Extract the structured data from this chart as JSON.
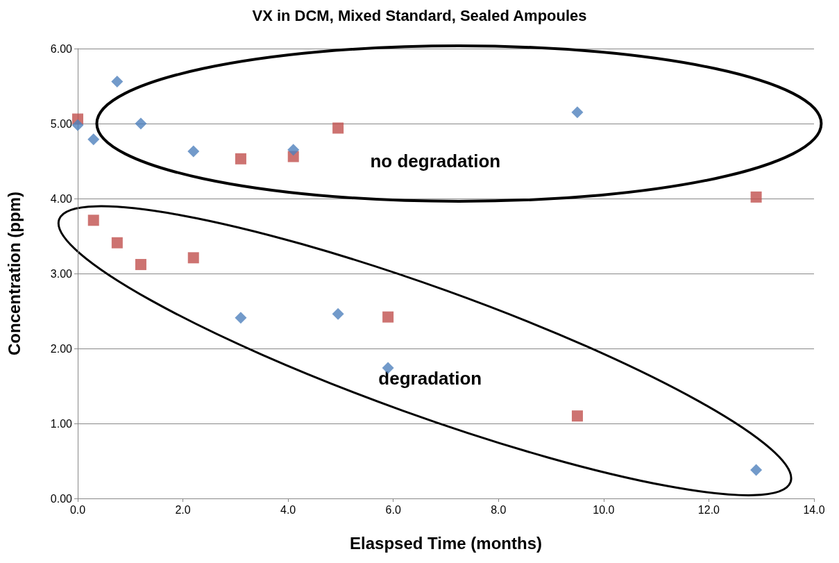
{
  "chart_data": {
    "type": "scatter",
    "title": "VX in DCM, Mixed Standard, Sealed Ampoules",
    "xlabel": "Elaspsed Time (months)",
    "ylabel": "Concentration (ppm)",
    "xlim": [
      0,
      14
    ],
    "ylim": [
      0,
      6
    ],
    "xticks": [
      {
        "value": 0,
        "label": "0.0"
      },
      {
        "value": 2,
        "label": "2.0"
      },
      {
        "value": 4,
        "label": "4.0"
      },
      {
        "value": 6,
        "label": "6.0"
      },
      {
        "value": 8,
        "label": "8.0"
      },
      {
        "value": 10,
        "label": "10.0"
      },
      {
        "value": 12,
        "label": "12.0"
      },
      {
        "value": 14,
        "label": "14.0"
      }
    ],
    "yticks": [
      {
        "value": 0,
        "label": "0.00"
      },
      {
        "value": 1,
        "label": "1.00"
      },
      {
        "value": 2,
        "label": "2.00"
      },
      {
        "value": 3,
        "label": "3.00"
      },
      {
        "value": 4,
        "label": "4.00"
      },
      {
        "value": 5,
        "label": "5.00"
      },
      {
        "value": 6,
        "label": "6.00"
      }
    ],
    "grid": "y",
    "series": [
      {
        "color": "#4f81bd",
        "marker": "diamond",
        "x": [
          0,
          0.3,
          0.75,
          1.2,
          2.2,
          4.1,
          9.5,
          3.1,
          4.95,
          5.9,
          12.9
        ],
        "values": [
          4.98,
          4.79,
          5.56,
          5.0,
          4.63,
          4.65,
          5.15,
          2.41,
          2.46,
          1.74,
          0.38
        ]
      },
      {
        "color": "#c0504d",
        "marker": "square",
        "x": [
          0,
          0.3,
          0.75,
          1.2,
          2.2,
          3.1,
          4.1,
          4.95,
          5.9,
          9.5,
          12.9
        ],
        "values": [
          5.06,
          3.71,
          3.41,
          3.12,
          3.21,
          4.53,
          4.56,
          4.94,
          2.42,
          1.1,
          4.02
        ]
      }
    ],
    "annotations": [
      "no degradation",
      "degradation"
    ]
  }
}
